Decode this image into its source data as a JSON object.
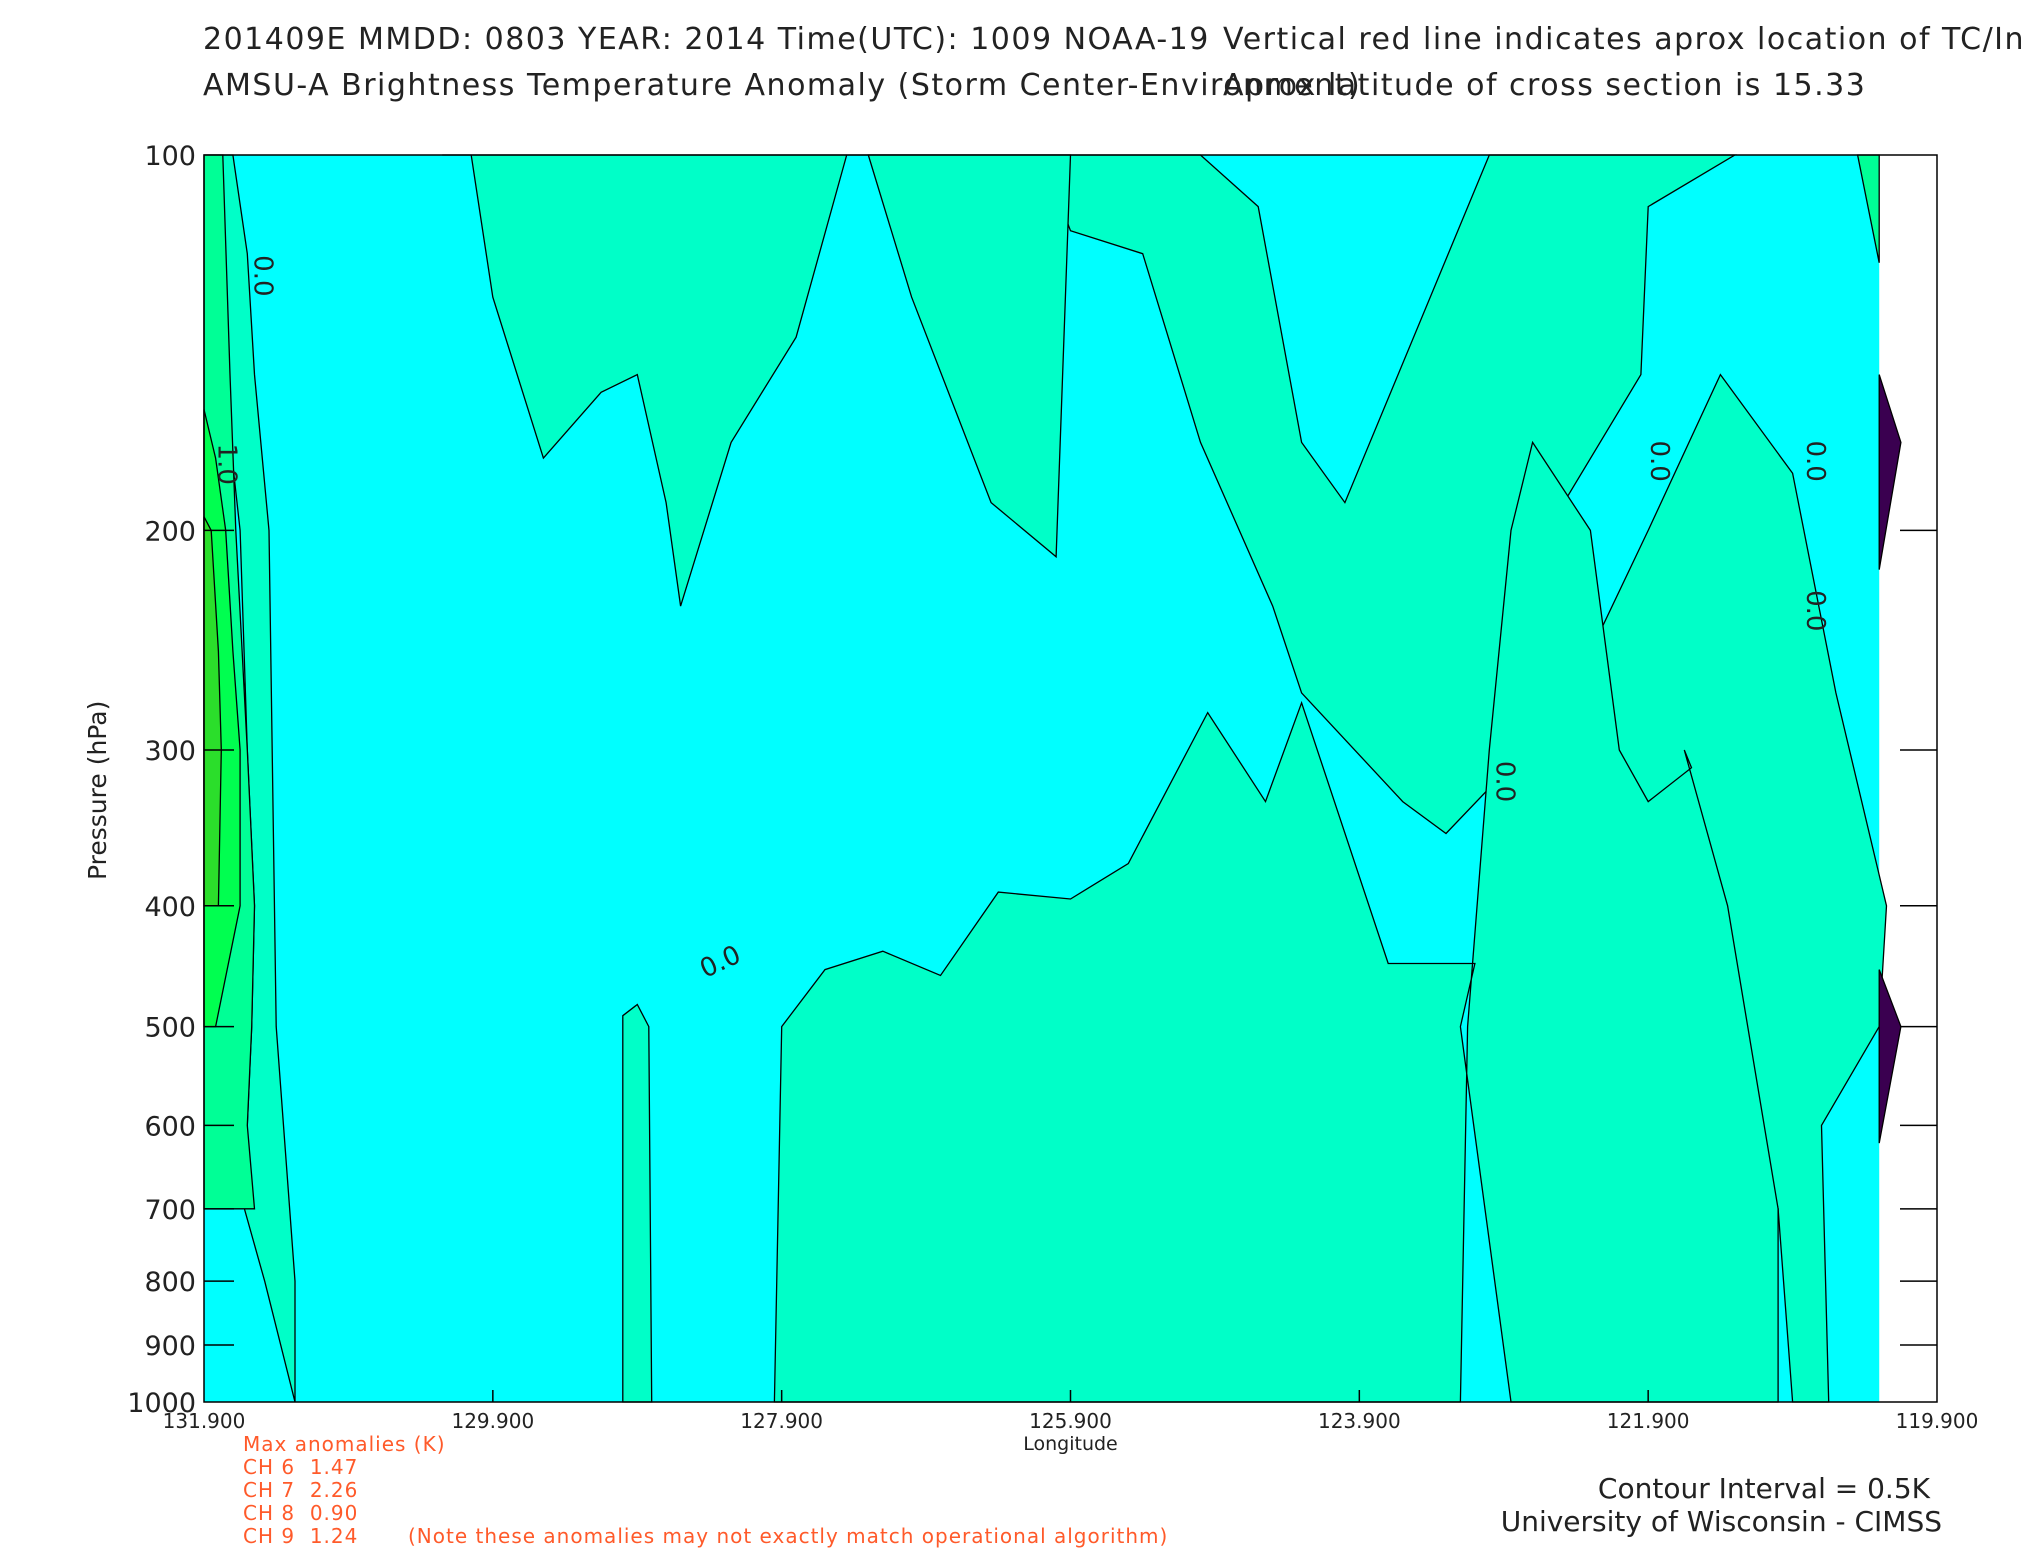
{
  "header": {
    "line1_left": "201409E  MMDD: 0803 YEAR: 2014 Time(UTC): 1009 NOAA-19",
    "line2_left": "AMSU-A Brightness Temperature Anomaly (Storm Center-Environment)",
    "line1_right": "Vertical red line indicates aprox location of TC/Invest",
    "line2_right": "Aprox latitude of cross section is 15.33"
  },
  "anomalies": {
    "title": "Max anomalies (K)",
    "channels": [
      {
        "label": "CH 6",
        "value": "1.47"
      },
      {
        "label": "CH 7",
        "value": "2.26"
      },
      {
        "label": "CH 8",
        "value": "0.90"
      },
      {
        "label": "CH 9",
        "value": "1.24"
      }
    ],
    "note": "(Note these anomalies may not exactly match operational algorithm)"
  },
  "footer": {
    "contour_interval": "Contour Interval = 0.5K",
    "institution": "University of Wisconsin - CIMSS"
  },
  "colors": {
    "anom_neg_0_to_0.5": "#00ffff",
    "anom_0_to_0.5": "#00ffc8",
    "anom_0.5_to_1": "#00ff96",
    "anom_1_to_1.5": "#00ff50",
    "anom_1.5_to_2": "#2bde2b",
    "anom_neg_large": "#3a0050",
    "annotation_text": "#ff5a2a"
  },
  "chart_data": {
    "type": "contour",
    "xlabel": "Longitude",
    "ylabel": "Pressure (hPa)",
    "xlim": [
      131.9,
      119.9
    ],
    "x_ticks": [
      "131.900",
      "129.900",
      "127.900",
      "125.900",
      "123.900",
      "121.900",
      "119.900"
    ],
    "y_scale": "log",
    "ylim": [
      1000,
      100
    ],
    "y_ticks": [
      "100",
      "200",
      "300",
      "400",
      "500",
      "600",
      "700",
      "800",
      "900",
      "1000"
    ],
    "contour_interval_K": 0.5,
    "contour_labels": [
      {
        "text": "0.0",
        "lon": 131.55,
        "p": 125
      },
      {
        "text": "1.0",
        "lon": 131.8,
        "p": 177
      },
      {
        "text": "0.0",
        "lon": 128.3,
        "p": 450
      },
      {
        "text": "0.0",
        "lon": 122.95,
        "p": 318
      },
      {
        "text": "0.0",
        "lon": 121.88,
        "p": 176
      },
      {
        "text": "0.0",
        "lon": 120.8,
        "p": 176
      },
      {
        "text": "0.0",
        "lon": 120.8,
        "p": 232
      }
    ],
    "regions": [
      {
        "level": "anom_0_to_0.5",
        "lon": [
          131.9,
          131.77,
          131.77,
          131.65,
          131.6,
          131.55,
          131.57,
          131.6,
          131.62,
          131.48,
          131.27,
          131.27,
          131.4,
          131.45,
          131.55,
          131.6,
          131.7,
          131.9
        ],
        "p": [
          100,
          100,
          150,
          200,
          300,
          400,
          500,
          600,
          700,
          800,
          1000,
          800,
          500,
          200,
          150,
          120,
          100,
          100
        ]
      },
      {
        "level": "anom_0_to_0.5",
        "lon": [
          130.25,
          130.05,
          129.9,
          129.55,
          129.15,
          128.9,
          128.7,
          128.6,
          128.25,
          127.8,
          127.45,
          127.0,
          126.82,
          126.5,
          126.0,
          125.9,
          125.5,
          125.0,
          124.6,
          124.3,
          124.0,
          123.0,
          122.6,
          121.9,
          121.4,
          121.3,
          121.9,
          121.95,
          122.6,
          122.5,
          121.95,
          121.3,
          121.0,
          120.9,
          120.65,
          120.7,
          120.3,
          120.25,
          120.6,
          120.9,
          121.4,
          121.9,
          122.5,
          123.3,
          123.6,
          124.3,
          124.5,
          125.0,
          125.4,
          125.9,
          126.1,
          126.5,
          126.82,
          127.1,
          127.45,
          127.7,
          127.9,
          127.85,
          128.5,
          128.8,
          129.2,
          129.9,
          130.25
        ],
        "p": [
          100,
          100,
          130,
          175,
          155,
          150,
          190,
          230,
          170,
          140,
          100,
          100,
          100,
          100,
          100,
          100,
          100,
          100,
          110,
          170,
          190,
          100,
          100,
          100,
          100,
          100,
          110,
          150,
          200,
          300,
          350,
          500,
          700,
          1000,
          1000,
          600,
          500,
          400,
          270,
          180,
          150,
          200,
          280,
          350,
          330,
          270,
          230,
          170,
          120,
          115,
          100,
          100,
          100,
          100,
          100,
          100,
          100,
          100,
          100,
          100,
          100,
          100,
          100
        ]
      },
      {
        "level": "anom_0_to_0.5",
        "lon": [
          127.95,
          127.9,
          127.6,
          127.2,
          126.8,
          126.4,
          125.9,
          125.5,
          124.95,
          124.55,
          124.3,
          123.7,
          123.1,
          123.2,
          122.85,
          122.4,
          122.3,
          121.95,
          121.9,
          121.5,
          121.2,
          121.0,
          121.0,
          121.35,
          121.65,
          121.6,
          121.9,
          122.1,
          122.3,
          122.7,
          122.85,
          123.0,
          123.15,
          123.2,
          123.5,
          124.0,
          124.5,
          125.0,
          125.5,
          125.9,
          126.2,
          126.6,
          127.1,
          127.6,
          127.95
        ],
        "p": [
          1000,
          500,
          450,
          435,
          455,
          390,
          395,
          370,
          280,
          330,
          275,
          445,
          445,
          500,
          1000,
          1000,
          1000,
          1000,
          1000,
          1000,
          1000,
          1000,
          700,
          400,
          300,
          310,
          330,
          300,
          200,
          170,
          200,
          300,
          500,
          1000,
          1000,
          1000,
          1000,
          1000,
          1000,
          1000,
          1000,
          1000,
          1000,
          1000,
          1000
        ]
      },
      {
        "level": "anom_0_to_0.5",
        "lon": [
          126.85,
          126.7,
          126.2,
          125.9,
          126.0,
          126.45,
          127.0,
          127.3,
          126.85
        ],
        "p": [
          100,
          100,
          100,
          100,
          210,
          190,
          130,
          100,
          100
        ]
      },
      {
        "level": "anom_0_to_0.5",
        "lon": [
          129.0,
          128.9,
          128.82,
          128.8,
          129.0
        ],
        "p": [
          490,
          480,
          500,
          1000,
          1000
        ]
      },
      {
        "level": "anom_0.5_to_1",
        "lon": [
          131.9,
          131.77,
          131.72,
          131.68,
          131.6,
          131.55,
          131.57,
          131.6,
          131.55,
          131.9
        ],
        "p": [
          100,
          100,
          150,
          200,
          300,
          400,
          500,
          600,
          700,
          700
        ]
      },
      {
        "level": "anom_1_to_1.5",
        "lon": [
          131.9,
          131.82,
          131.75,
          131.7,
          131.65,
          131.65,
          131.82,
          131.9
        ],
        "p": [
          160,
          175,
          200,
          250,
          300,
          400,
          500,
          500
        ]
      },
      {
        "level": "anom_1.5_to_2",
        "lon": [
          131.9,
          131.85,
          131.8,
          131.78,
          131.8,
          131.9
        ],
        "p": [
          195,
          200,
          250,
          300,
          400,
          400
        ]
      },
      {
        "level": "anom_0.5_to_1",
        "lon": [
          120.45,
          120.3,
          120.3,
          120.45
        ],
        "p": [
          100,
          100,
          122,
          100
        ]
      },
      {
        "level": "anom_neg_large",
        "lon": [
          120.3,
          120.15,
          120.3
        ],
        "p": [
          150,
          170,
          215
        ]
      },
      {
        "level": "anom_neg_large",
        "lon": [
          120.3,
          120.15,
          120.3
        ],
        "p": [
          450,
          500,
          620
        ]
      }
    ]
  }
}
